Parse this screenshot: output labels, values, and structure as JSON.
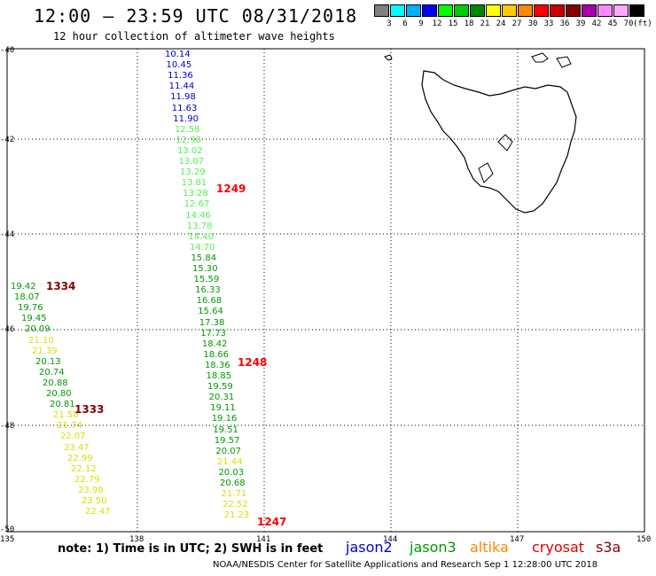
{
  "title": "12:00 — 23:59 UTC 08/31/2018",
  "subtitle": "12 hour collection of altimeter wave heights",
  "legend": {
    "unit": "(ft)",
    "bins": [
      {
        "color": "#808080",
        "label": "3"
      },
      {
        "color": "#00ffff",
        "label": "6"
      },
      {
        "color": "#00b0ff",
        "label": "9"
      },
      {
        "color": "#0000ff",
        "label": "12"
      },
      {
        "color": "#00ff00",
        "label": "15"
      },
      {
        "color": "#00cc00",
        "label": "18"
      },
      {
        "color": "#008800",
        "label": "21"
      },
      {
        "color": "#ffff00",
        "label": "24"
      },
      {
        "color": "#ffcc00",
        "label": "27"
      },
      {
        "color": "#ff8800",
        "label": "30"
      },
      {
        "color": "#ff0000",
        "label": "33"
      },
      {
        "color": "#cc0000",
        "label": "36"
      },
      {
        "color": "#880000",
        "label": "39"
      },
      {
        "color": "#aa00aa",
        "label": "42"
      },
      {
        "color": "#ff88ff",
        "label": "45"
      },
      {
        "color": "#ffaaff",
        "label": "70"
      },
      {
        "color": "#000000",
        "label": ""
      }
    ]
  },
  "lat_labels": [
    "-40",
    "-42",
    "-44",
    "-46",
    "-48",
    "-50"
  ],
  "lon_labels": [
    "135",
    "138",
    "141",
    "144",
    "147",
    "150"
  ],
  "passes": [
    {
      "label": "1249",
      "color": "#ff0000"
    },
    {
      "label": "1248",
      "color": "#ff0000"
    },
    {
      "label": "1247",
      "color": "#ff0000"
    },
    {
      "label": "1334",
      "color": "#880000"
    },
    {
      "label": "1333",
      "color": "#880000"
    }
  ],
  "track_a": [
    {
      "v": "10.14",
      "c": "#0000cc"
    },
    {
      "v": "10.45",
      "c": "#0000cc"
    },
    {
      "v": "11.36",
      "c": "#0000cc"
    },
    {
      "v": "11.44",
      "c": "#0000cc"
    },
    {
      "v": "11.98",
      "c": "#0000cc"
    },
    {
      "v": "11.63",
      "c": "#0000cc"
    },
    {
      "v": "11.90",
      "c": "#0000cc"
    },
    {
      "v": "12.58",
      "c": "#55ee55"
    },
    {
      "v": "12.98",
      "c": "#55ee55"
    },
    {
      "v": "13.02",
      "c": "#55ee55"
    },
    {
      "v": "13.07",
      "c": "#55ee55"
    },
    {
      "v": "13.29",
      "c": "#55ee55"
    },
    {
      "v": "13.81",
      "c": "#55ee55"
    },
    {
      "v": "13.28",
      "c": "#55ee55"
    },
    {
      "v": "12.67",
      "c": "#55ee55"
    },
    {
      "v": "14.46",
      "c": "#55ee55"
    },
    {
      "v": "13.78",
      "c": "#55ee55"
    },
    {
      "v": "14.40",
      "c": "#55ee55"
    },
    {
      "v": "14.70",
      "c": "#55ee55"
    },
    {
      "v": "15.84",
      "c": "#009900"
    },
    {
      "v": "15.30",
      "c": "#009900"
    },
    {
      "v": "15.59",
      "c": "#009900"
    },
    {
      "v": "16.33",
      "c": "#009900"
    },
    {
      "v": "16.68",
      "c": "#009900"
    },
    {
      "v": "15.64",
      "c": "#009900"
    },
    {
      "v": "17.38",
      "c": "#009900"
    },
    {
      "v": "17.73",
      "c": "#009900"
    },
    {
      "v": "18.42",
      "c": "#009900"
    },
    {
      "v": "18.66",
      "c": "#009900"
    },
    {
      "v": "18.36",
      "c": "#009900"
    },
    {
      "v": "18.85",
      "c": "#009900"
    },
    {
      "v": "19.59",
      "c": "#009900"
    },
    {
      "v": "20.31",
      "c": "#009900"
    },
    {
      "v": "19.11",
      "c": "#009900"
    },
    {
      "v": "19.16",
      "c": "#009900"
    },
    {
      "v": "19.51",
      "c": "#009900"
    },
    {
      "v": "19.57",
      "c": "#009900"
    },
    {
      "v": "20.07",
      "c": "#009900"
    },
    {
      "v": "21.44",
      "c": "#dddd00"
    },
    {
      "v": "20.03",
      "c": "#009900"
    },
    {
      "v": "20.68",
      "c": "#009900"
    },
    {
      "v": "21.71",
      "c": "#dddd00"
    },
    {
      "v": "22.52",
      "c": "#dddd00"
    },
    {
      "v": "21.23",
      "c": "#dddd00"
    }
  ],
  "track_b": [
    {
      "v": "19.42",
      "c": "#009900"
    },
    {
      "v": "18.07",
      "c": "#009900"
    },
    {
      "v": "19.76",
      "c": "#009900"
    },
    {
      "v": "19.45",
      "c": "#009900"
    },
    {
      "v": "20.09",
      "c": "#009900"
    },
    {
      "v": "21.10",
      "c": "#dddd00"
    },
    {
      "v": "21.39",
      "c": "#dddd00"
    },
    {
      "v": "20.13",
      "c": "#009900"
    },
    {
      "v": "20.74",
      "c": "#009900"
    },
    {
      "v": "20.88",
      "c": "#009900"
    },
    {
      "v": "20.80",
      "c": "#009900"
    },
    {
      "v": "20.81",
      "c": "#009900"
    },
    {
      "v": "21.58",
      "c": "#dddd00"
    },
    {
      "v": "21.74",
      "c": "#dddd00"
    },
    {
      "v": "22.07",
      "c": "#dddd00"
    },
    {
      "v": "23.47",
      "c": "#dddd00"
    },
    {
      "v": "22.99",
      "c": "#dddd00"
    },
    {
      "v": "22.12",
      "c": "#dddd00"
    },
    {
      "v": "22.79",
      "c": "#dddd00"
    },
    {
      "v": "23.98",
      "c": "#dddd00"
    },
    {
      "v": "23.50",
      "c": "#dddd00"
    },
    {
      "v": "22.47",
      "c": "#dddd00"
    }
  ],
  "note": "note: 1) Time is in UTC; 2) SWH is in feet",
  "satellites": [
    {
      "name": "jason2",
      "color": "#0000cc"
    },
    {
      "name": "jason3",
      "color": "#009900"
    },
    {
      "name": "altika",
      "color": "#ff8800"
    },
    {
      "name": "cryosat",
      "color": "#dd0000"
    },
    {
      "name": "s3a",
      "color": "#880000"
    }
  ],
  "footer": "NOAA/NESDIS Center for Satellite Applications and Research   Sep  1 12:28:00 UTC 2018"
}
